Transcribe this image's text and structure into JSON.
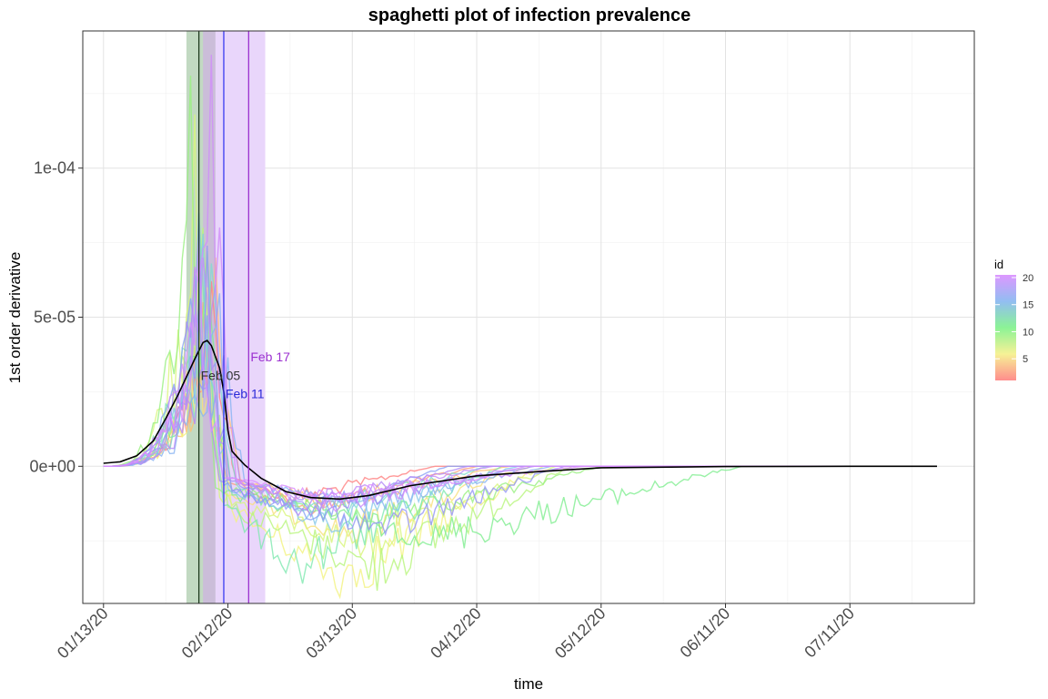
{
  "chart_data": {
    "type": "line",
    "title": "spaghetti plot of infection prevalence",
    "xlabel": "time",
    "ylabel": "1st order derivative",
    "x_type": "date",
    "xlim": [
      "2020-01-08",
      "2020-08-10"
    ],
    "ylim": [
      -4.6e-05,
      0.000146
    ],
    "x_ticks": [
      {
        "date": "2020-01-13",
        "label": "01/13/20"
      },
      {
        "date": "2020-02-12",
        "label": "02/12/20"
      },
      {
        "date": "2020-03-13",
        "label": "03/13/20"
      },
      {
        "date": "2020-04-12",
        "label": "04/12/20"
      },
      {
        "date": "2020-05-12",
        "label": "05/12/20"
      },
      {
        "date": "2020-06-11",
        "label": "06/11/20"
      },
      {
        "date": "2020-07-11",
        "label": "07/11/20"
      }
    ],
    "y_ticks": [
      {
        "value": 0,
        "label": "0e+00"
      },
      {
        "value": 5e-05,
        "label": "5e-05"
      },
      {
        "value": 0.0001,
        "label": "1e-04"
      }
    ],
    "grid": true,
    "bands": [
      {
        "start": "2020-02-02",
        "end": "2020-02-09",
        "color": "#c2d9c2"
      },
      {
        "start": "2020-02-06",
        "end": "2020-02-09",
        "color": "#cbbdd9"
      },
      {
        "start": "2020-02-09",
        "end": "2020-02-21",
        "color": "#e9d6fb"
      }
    ],
    "vlines": [
      {
        "date": "2020-02-05",
        "label": "Feb 05",
        "color": "#1f3a1f",
        "label_color": "#333333",
        "label_value": 3.05e-05
      },
      {
        "date": "2020-02-11",
        "label": "Feb 11",
        "color": "#3a3af0",
        "label_color": "#2a2ad8",
        "label_value": 2.43e-05
      },
      {
        "date": "2020-02-17",
        "label": "Feb 17",
        "color": "#9b30d0",
        "label_color": "#9b30d0",
        "label_value": 3.67e-05
      }
    ],
    "legend": {
      "title": "id",
      "position": "right",
      "ticks": [
        {
          "value": 5,
          "label": "5"
        },
        {
          "value": 10,
          "label": "10"
        },
        {
          "value": 15,
          "label": "15"
        },
        {
          "value": 20,
          "label": "20"
        }
      ],
      "min": 1,
      "max": 20.5,
      "gradient": [
        "#ff8080",
        "#f5f08a",
        "#7ff28a",
        "#86b6f0",
        "#d98cff"
      ]
    },
    "mean_line": {
      "color": "#000000",
      "points": [
        [
          "2020-01-13",
          1e-06
        ],
        [
          "2020-01-17",
          1.5e-06
        ],
        [
          "2020-01-21",
          3.5e-06
        ],
        [
          "2020-01-25",
          8.5e-06
        ],
        [
          "2020-01-28",
          1.6e-05
        ],
        [
          "2020-01-31",
          2.4e-05
        ],
        [
          "2020-02-02",
          3e-05
        ],
        [
          "2020-02-04",
          3.6e-05
        ],
        [
          "2020-02-06",
          4.15e-05
        ],
        [
          "2020-02-07",
          4.22e-05
        ],
        [
          "2020-02-08",
          4.05e-05
        ],
        [
          "2020-02-10",
          3.3e-05
        ],
        [
          "2020-02-11",
          2.5e-05
        ],
        [
          "2020-02-12",
          1.2e-05
        ],
        [
          "2020-02-13",
          5e-06
        ],
        [
          "2020-02-16",
          5e-07
        ],
        [
          "2020-02-20",
          -4e-06
        ],
        [
          "2020-02-26",
          -8.5e-06
        ],
        [
          "2020-03-03",
          -1.05e-05
        ],
        [
          "2020-03-10",
          -1.1e-05
        ],
        [
          "2020-03-17",
          -9.8e-06
        ],
        [
          "2020-03-27",
          -6.5e-06
        ],
        [
          "2020-04-12",
          -3.2e-06
        ],
        [
          "2020-04-27",
          -1.8e-06
        ],
        [
          "2020-05-12",
          -5e-07
        ],
        [
          "2020-06-11",
          -1e-07
        ],
        [
          "2020-07-11",
          0
        ],
        [
          "2020-08-01",
          0
        ]
      ]
    },
    "series": [
      {
        "id": 1,
        "color": "#ff7f7f",
        "peak_date": "2020-02-08",
        "peak": 6.2e-05,
        "trough": -1.1e-05,
        "trough_date": "2020-02-27",
        "recover_date": "2020-04-02"
      },
      {
        "id": 2,
        "color": "#ffa07a",
        "peak_date": "2020-02-06",
        "peak": 5.5e-05,
        "trough": -1.4e-05,
        "trough_date": "2020-03-03",
        "recover_date": "2020-04-12"
      },
      {
        "id": 3,
        "color": "#ffc070",
        "peak_date": "2020-02-09",
        "peak": 7e-05,
        "trough": -1.2e-05,
        "trough_date": "2020-03-07",
        "recover_date": "2020-04-20"
      },
      {
        "id": 4,
        "color": "#f7e07a",
        "peak_date": "2020-02-05",
        "peak": 5e-05,
        "trough": -2.2e-05,
        "trough_date": "2020-03-12",
        "recover_date": "2020-04-25"
      },
      {
        "id": 5,
        "color": "#f2f280",
        "peak_date": "2020-02-07",
        "peak": 6e-05,
        "trough": -3.7e-05,
        "trough_date": "2020-03-10",
        "recover_date": "2020-04-28"
      },
      {
        "id": 6,
        "color": "#d8f57a",
        "peak_date": "2020-02-04",
        "peak": 0.000118,
        "trough": -2.6e-05,
        "trough_date": "2020-03-15",
        "recover_date": "2020-05-01"
      },
      {
        "id": 7,
        "color": "#b8f57c",
        "peak_date": "2020-02-06",
        "peak": 8e-05,
        "trough": -3.4e-05,
        "trough_date": "2020-03-18",
        "recover_date": "2020-05-05"
      },
      {
        "id": 8,
        "color": "#98f080",
        "peak_date": "2020-02-03",
        "peak": 0.000131,
        "trough": -1.8e-05,
        "trough_date": "2020-03-20",
        "recover_date": "2020-05-12"
      },
      {
        "id": 9,
        "color": "#80ee90",
        "peak_date": "2020-02-07",
        "peak": 7.2e-05,
        "trough": -2.4e-05,
        "trough_date": "2020-04-02",
        "recover_date": "2020-06-15"
      },
      {
        "id": 10,
        "color": "#80e8b0",
        "peak_date": "2020-02-05",
        "peak": 8.5e-05,
        "trough": -3.3e-05,
        "trough_date": "2020-02-28",
        "recover_date": "2020-04-18"
      },
      {
        "id": 11,
        "color": "#80dcd0",
        "peak_date": "2020-02-08",
        "peak": 6.8e-05,
        "trough": -1.5e-05,
        "trough_date": "2020-03-05",
        "recover_date": "2020-04-15"
      },
      {
        "id": 12,
        "color": "#84c8ea",
        "peak_date": "2020-02-06",
        "peak": 7.8e-05,
        "trough": -1.9e-05,
        "trough_date": "2020-03-08",
        "recover_date": "2020-04-22"
      },
      {
        "id": 13,
        "color": "#88b4f2",
        "peak_date": "2020-02-10",
        "peak": 5.8e-05,
        "trough": -1.3e-05,
        "trough_date": "2020-03-14",
        "recover_date": "2020-04-30"
      },
      {
        "id": 14,
        "color": "#8aa2f5",
        "peak_date": "2020-02-05",
        "peak": 8.5e-05,
        "trough": -1.6e-05,
        "trough_date": "2020-03-01",
        "recover_date": "2020-04-05"
      },
      {
        "id": 15,
        "color": "#9595f7",
        "peak_date": "2020-02-07",
        "peak": 7.4e-05,
        "trough": -2.1e-05,
        "trough_date": "2020-03-22",
        "recover_date": "2020-05-03"
      },
      {
        "id": 16,
        "color": "#a38ef8",
        "peak_date": "2020-02-04",
        "peak": 6.6e-05,
        "trough": -1.2e-05,
        "trough_date": "2020-03-11",
        "recover_date": "2020-04-26"
      },
      {
        "id": 17,
        "color": "#b48af8",
        "peak_date": "2020-02-09",
        "peak": 6.1e-05,
        "trough": -1.4e-05,
        "trough_date": "2020-02-29",
        "recover_date": "2020-04-10"
      },
      {
        "id": 18,
        "color": "#c38cf8",
        "peak_date": "2020-02-06",
        "peak": 7e-05,
        "trough": -1.1e-05,
        "trough_date": "2020-03-04",
        "recover_date": "2020-04-16"
      },
      {
        "id": 19,
        "color": "#cf8cfa",
        "peak_date": "2020-02-08",
        "peak": 0.000138,
        "trough": -1.3e-05,
        "trough_date": "2020-03-09",
        "recover_date": "2020-04-24"
      },
      {
        "id": 20,
        "color": "#d98cff",
        "peak_date": "2020-02-05",
        "peak": 7.6e-05,
        "trough": -1e-05,
        "trough_date": "2020-03-06",
        "recover_date": "2020-05-08"
      }
    ]
  }
}
